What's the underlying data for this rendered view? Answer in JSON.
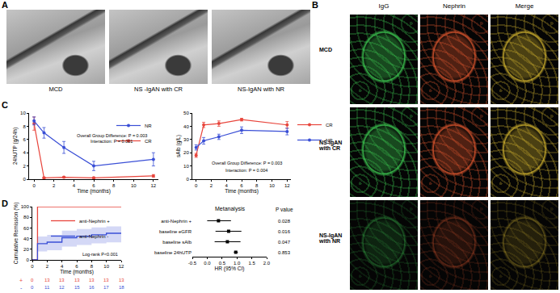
{
  "figure": {
    "panel_labels": [
      "A",
      "B",
      "C",
      "D"
    ],
    "panel_a": {
      "captions": [
        "MCD",
        "NS -IgAN with CR",
        "NS-IgAN with NR"
      ]
    },
    "panel_b": {
      "columns": [
        "IgG",
        "Nephrin",
        "Merge"
      ],
      "rows": [
        "MCD",
        "NS-IgAN with CR",
        "NS-IgAN with NR"
      ]
    }
  },
  "chart_data": [
    {
      "type": "line",
      "x": [
        0,
        1,
        3,
        6,
        12
      ],
      "xlabel": "Time (months)",
      "ylabel": "24hUTP (g/24h)",
      "xlim": [
        -0.5,
        12.5
      ],
      "xticks": [
        0,
        2,
        4,
        6,
        8,
        10,
        12
      ],
      "ylim": [
        0,
        10
      ],
      "yticks": [
        0,
        2,
        4,
        6,
        8,
        10
      ],
      "legend": "upper right",
      "marker": "circle",
      "annotations": [
        "Overall Group Difference: P = 0.003",
        "Interaction: P = 0.001"
      ],
      "series": [
        {
          "name": "CR",
          "color": "#e8453c",
          "values": [
            8.4,
            0.2,
            0.3,
            0.2,
            0.5
          ],
          "errors": [
            1.0,
            0.1,
            0.1,
            0.1,
            0.2
          ]
        },
        {
          "name": "NR",
          "color": "#3a4fd6",
          "values": [
            8.8,
            7.0,
            4.8,
            2.0,
            3.0
          ],
          "errors": [
            0.6,
            0.8,
            0.9,
            0.7,
            1.0
          ]
        }
      ]
    },
    {
      "type": "line",
      "x": [
        0,
        1,
        3,
        6,
        12
      ],
      "xlabel": "Time (months)",
      "ylabel": "sAlb (g/L)",
      "xlim": [
        -0.5,
        12.5
      ],
      "xticks": [
        0,
        2,
        4,
        6,
        8,
        10,
        12
      ],
      "ylim": [
        0,
        50
      ],
      "yticks": [
        0,
        10,
        20,
        30,
        40,
        50
      ],
      "legend": "upper right",
      "marker": "circle",
      "annotations": [
        "Overall Group Difference: P = 0.003",
        "Interaction: P = 0.004"
      ],
      "series": [
        {
          "name": "CR",
          "color": "#e8453c",
          "values": [
            18,
            41,
            42,
            45,
            41
          ],
          "errors": [
            1.5,
            2,
            2,
            1,
            2.5
          ]
        },
        {
          "name": "NR",
          "color": "#3a4fd6",
          "values": [
            24,
            29,
            32,
            37,
            36
          ],
          "errors": [
            2,
            2.5,
            2,
            2.5,
            2.5
          ]
        }
      ]
    },
    {
      "type": "step",
      "xlabel": "Time (months)",
      "ylabel": "Cumulative Remission (%)",
      "xlim": [
        0,
        12
      ],
      "xticks": [
        0,
        2,
        4,
        6,
        8,
        10,
        12
      ],
      "ylim": [
        0,
        100
      ],
      "yticks": [
        0,
        20,
        40,
        60,
        80,
        100
      ],
      "legend": "upper center",
      "annotations": [
        "Log-rank P<0.001"
      ],
      "series": [
        {
          "name": "anti-Nephrin +",
          "color": "#e8453c",
          "x": [
            0,
            0.7,
            12
          ],
          "values": [
            0,
            100,
            100
          ]
        },
        {
          "name": "anti-Nephrin -",
          "color": "#3a4fd6",
          "x": [
            0,
            0.7,
            2,
            4,
            6,
            8,
            10,
            12
          ],
          "values": [
            0,
            30.6,
            33.3,
            41.7,
            44.4,
            47.2,
            50,
            50
          ],
          "ci_lower": [
            0,
            16,
            18,
            25,
            28,
            31,
            33,
            33
          ],
          "ci_upper": [
            0,
            44,
            47,
            55,
            58,
            61,
            63,
            63
          ]
        }
      ],
      "risk_table": {
        "times": [
          0,
          2,
          4,
          6,
          8,
          10,
          12
        ],
        "rows": [
          {
            "label": "+",
            "color": "#e8453c",
            "values": [
              0,
              13,
              13,
              13,
              13,
              13,
              13
            ]
          },
          {
            "label": "-",
            "color": "#3a4fd6",
            "values": [
              0,
              11,
              12,
              15,
              16,
              17,
              18
            ]
          }
        ]
      }
    },
    {
      "type": "forest",
      "title": "Metanalysis",
      "xlabel": "HR (95% CI)",
      "categories": [
        "anti-Nephrin +",
        "baseline eGFR",
        "baseline sAlb",
        "baseline 24hUTP"
      ],
      "values": [
        0.38,
        0.72,
        0.68,
        0.96
      ],
      "ci_lower": [
        0.0,
        0.28,
        0.25,
        0.9
      ],
      "ci_upper": [
        0.8,
        1.15,
        1.12,
        1.03
      ],
      "xlim": [
        -0.5,
        2.0
      ],
      "xticks": [
        -0.5,
        {
          "value": 0,
          "label": "0.0"
        },
        0.5,
        {
          "value": 1,
          "label": "1.0"
        },
        1.5,
        {
          "value": 2,
          "label": "2.0"
        }
      ],
      "color": "#000000",
      "marker": "square",
      "p_value_title": "P value",
      "p_values": [
        0.028,
        0.016,
        0.047,
        0.853
      ]
    }
  ]
}
